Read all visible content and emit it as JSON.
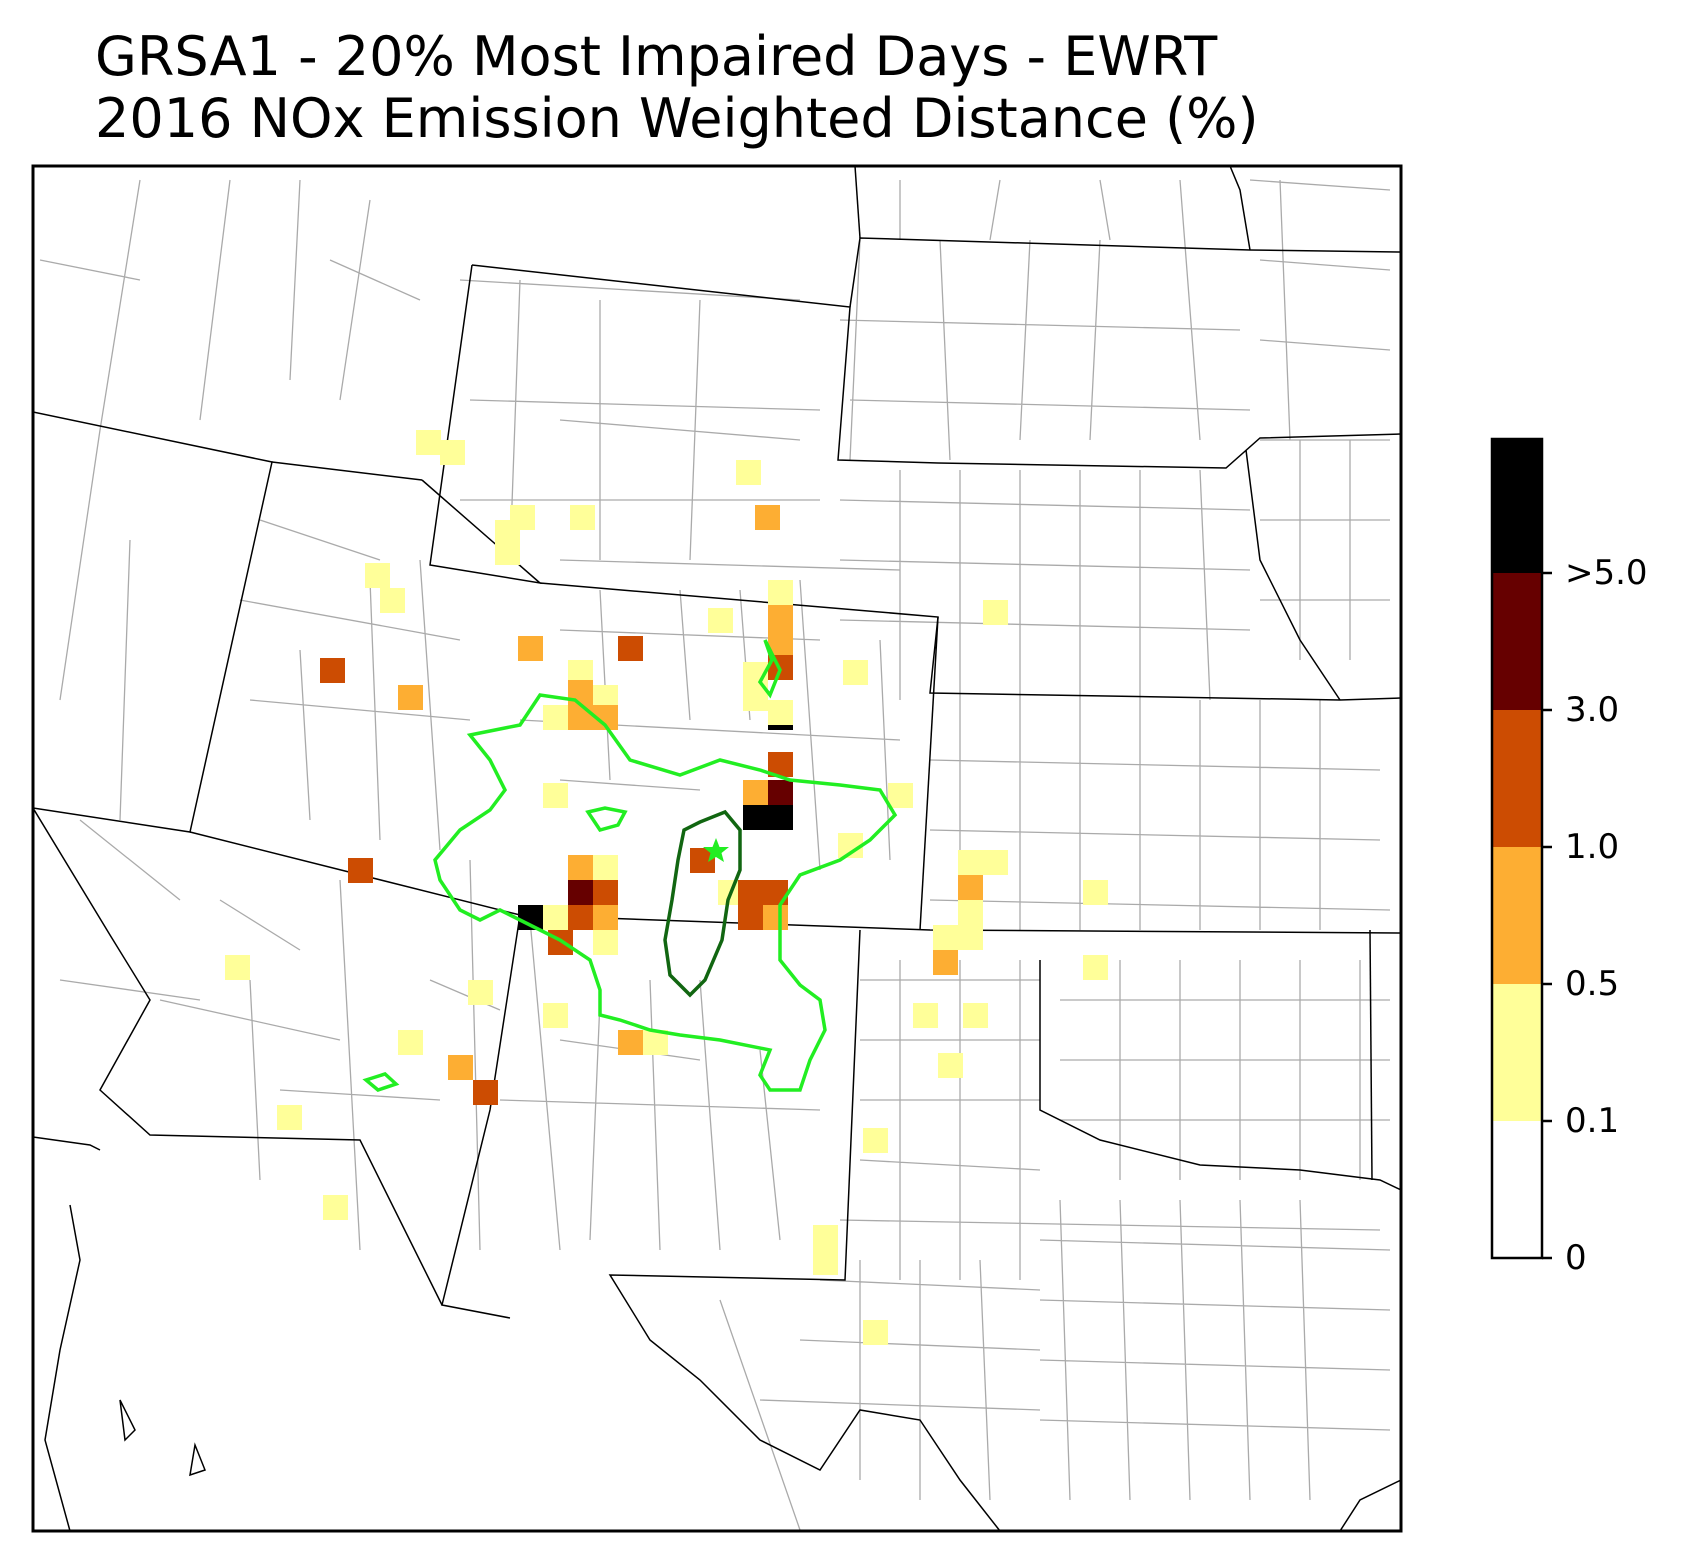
{
  "title": {
    "line1": "GRSA1 - 20% Most Impaired Days - EWRT",
    "line2": "2016 NOx Emission Weighted Distance (%)"
  },
  "colorbar": {
    "labels": [
      "0",
      "0.1",
      "0.5",
      "1.0",
      "3.0",
      ">5.0"
    ],
    "bins": [
      {
        "from": "0",
        "to": "0.1",
        "color": "#ffffff"
      },
      {
        "from": "0.1",
        "to": "0.5",
        "color": "#ffff99"
      },
      {
        "from": "0.5",
        "to": "1.0",
        "color": "#fdae33"
      },
      {
        "from": "1.0",
        "to": "3.0",
        "color": "#cc4c02"
      },
      {
        "from": "3.0",
        "to": "5.0",
        "color": "#660000"
      },
      {
        "from": ">5.0",
        "to": "",
        "color": "#000000"
      }
    ]
  },
  "colors": {
    "contour_outer": "#22ee22",
    "contour_inner": "#116611",
    "site_marker": "#22ee22",
    "state_lines": "#000000",
    "county_lines": "#aaaaaa"
  },
  "site_marker_icon": "star-icon"
}
